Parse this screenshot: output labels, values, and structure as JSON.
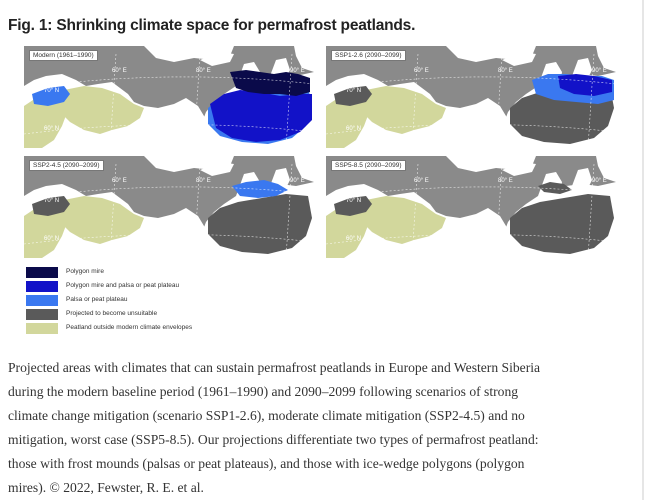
{
  "figure": {
    "title": "Fig. 1: Shrinking climate space for permafrost peatlands.",
    "panels": [
      {
        "label": "Modern (1961–1990)",
        "scenario": "modern"
      },
      {
        "label": "SSP1-2.6 (2090–2099)",
        "scenario": "ssp126"
      },
      {
        "label": "SSP2-4.5 (2090–2099)",
        "scenario": "ssp245"
      },
      {
        "label": "SSP5-8.5 (2090–2099)",
        "scenario": "ssp585"
      }
    ],
    "map_labels": {
      "lon1": "60° E",
      "lon2": "80° E",
      "lon3": "90° E",
      "lat1": "70° N",
      "lat2": "60° N"
    },
    "legend": [
      {
        "label": "Polygon mire",
        "color": "#0a0a4a"
      },
      {
        "label": "Polygon mire and palsa or peat plateau",
        "color": "#1212c8"
      },
      {
        "label": "Palsa or peat plateau",
        "color": "#3a78f0"
      },
      {
        "label": "Projected to become unsuitable",
        "color": "#5a5a5a"
      },
      {
        "label": "Peatland outside modern climate envelopes",
        "color": "#d2d79c"
      }
    ],
    "colors": {
      "ocean": "#8a8a8a",
      "land_nonpeat": "#ffffff",
      "peat_outside": "#d2d79c",
      "unsuitable": "#5a5a5a",
      "polygon": "#0a0a4a",
      "polygon_palsa": "#1212c8",
      "palsa": "#3a78f0"
    }
  },
  "caption": {
    "lines": [
      "Projected areas with climates that can sustain permafrost peatlands in Europe and Western Siberia",
      "during the modern baseline period (1961–1990) and 2090–2099 following scenarios of strong",
      "climate change mitigation (scenario SSP1-2.6), moderate climate mitigation (SSP2-4.5) and no",
      "mitigation, worst case (SSP5-8.5). Our projections differentiate two types of permafrost peatland:",
      "those with frost mounds (palsas or peat plateaus), and those with ice-wedge polygons (polygon",
      "mires). © 2022, Fewster, R. E. et al."
    ]
  }
}
